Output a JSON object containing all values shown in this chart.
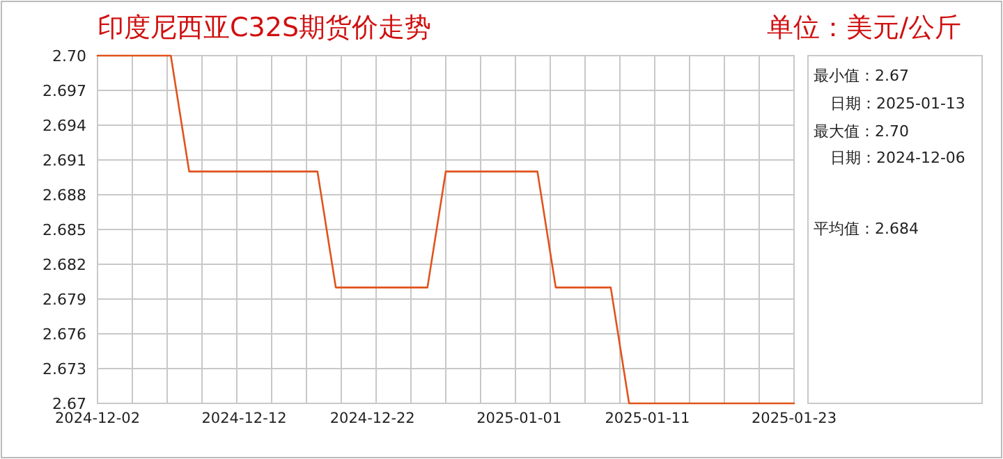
{
  "chart_data": {
    "type": "line",
    "title": "印度尼西亚C32S期货价走势",
    "subtitle": "单位：美元/公斤",
    "categories": [
      "2024-12-02",
      null,
      null,
      null,
      null,
      null,
      null,
      null,
      "2024-12-12",
      null,
      null,
      null,
      null,
      null,
      null,
      "2024-12-22",
      null,
      null,
      null,
      null,
      null,
      null,
      null,
      "2025-01-01",
      null,
      null,
      null,
      null,
      null,
      null,
      "2025-01-11",
      null,
      null,
      null,
      null,
      null,
      null,
      null,
      "2025-01-23"
    ],
    "series": [
      {
        "color": "#e0531b",
        "values": [
          2.7,
          2.7,
          2.7,
          2.7,
          2.7,
          2.69,
          2.69,
          2.69,
          2.69,
          2.69,
          2.69,
          2.69,
          2.69,
          2.68,
          2.68,
          2.68,
          2.68,
          2.68,
          2.68,
          2.69,
          2.69,
          2.69,
          2.69,
          2.69,
          2.69,
          2.68,
          2.68,
          2.68,
          2.68,
          2.67,
          2.67,
          2.67,
          2.67,
          2.67,
          2.67,
          2.67,
          2.67,
          2.67,
          2.67
        ]
      }
    ],
    "ylim": [
      2.67,
      2.7
    ],
    "yticks": [
      2.67,
      2.673,
      2.676,
      2.679,
      2.682,
      2.685,
      2.688,
      2.691,
      2.694,
      2.697,
      {
        "value": 2.7,
        "label": "2.70"
      }
    ],
    "grid": true,
    "annotations": [
      "最小值：2.67",
      "日期：2025-01-13",
      "最大值：2.70",
      "日期：2024-12-06",
      "平均值：2.684"
    ]
  }
}
